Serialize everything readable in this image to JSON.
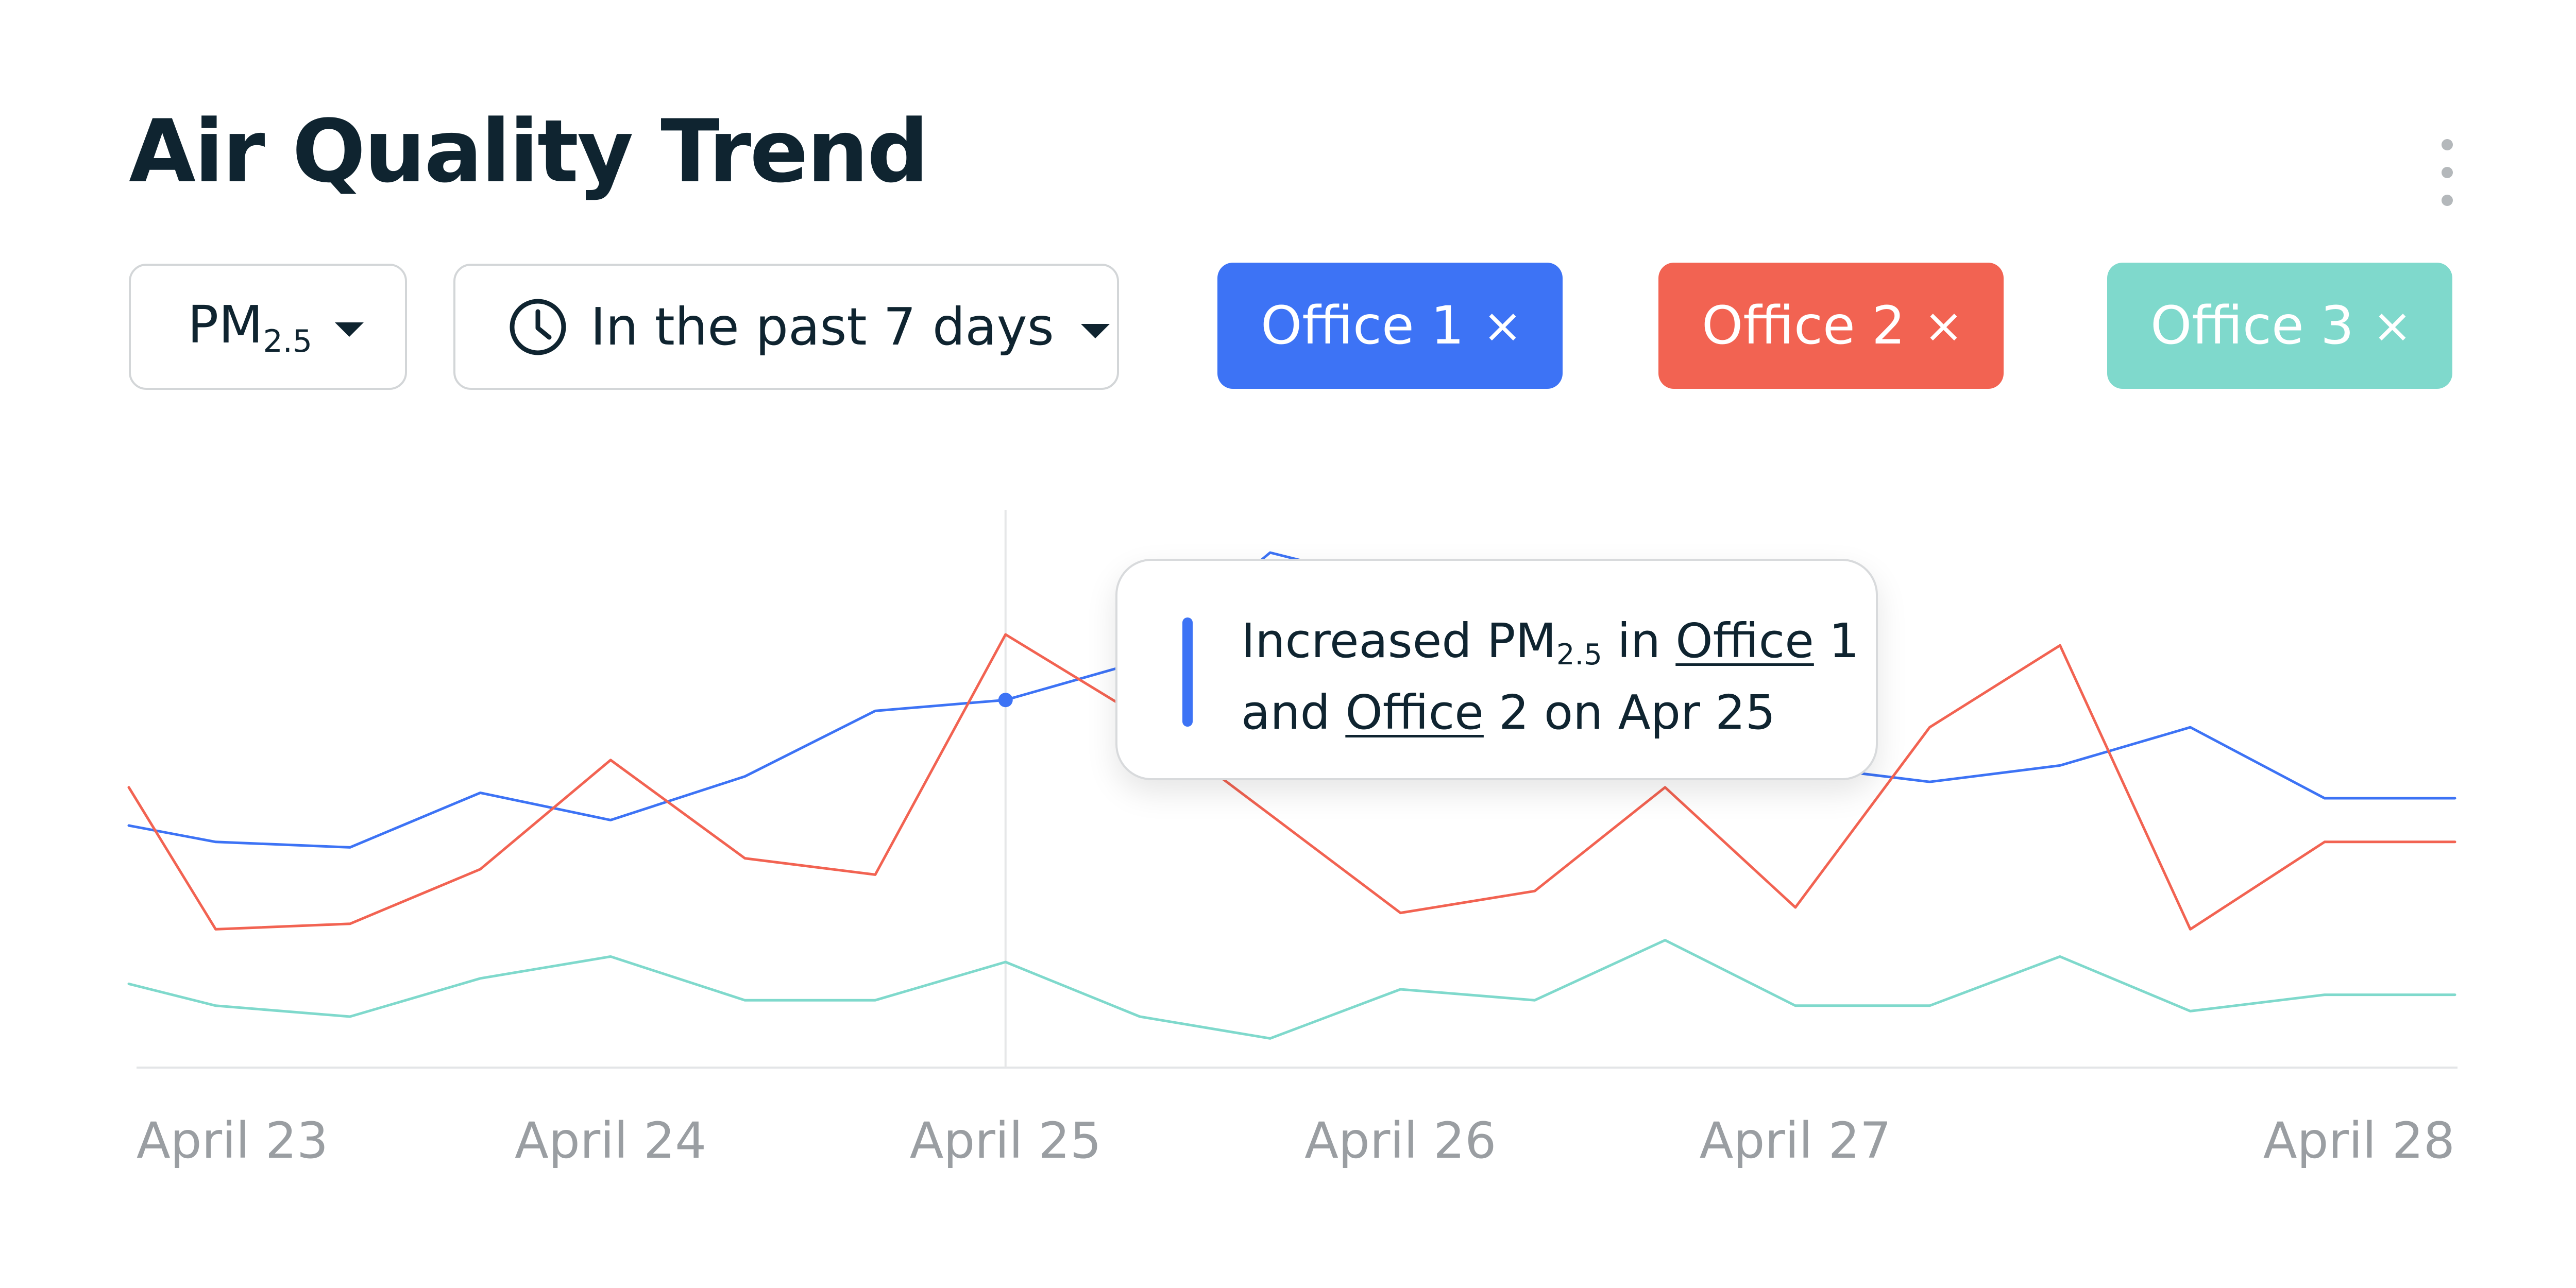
{
  "header": {
    "title": "Air Quality Trend"
  },
  "filters": {
    "metric": {
      "base": "PM",
      "subscript": "2.5"
    },
    "range": {
      "label": "In the past 7 days"
    }
  },
  "chips": [
    {
      "label": "Office 1",
      "close": "×",
      "color": "#3d73f5"
    },
    {
      "label": "Office 2",
      "close": "×",
      "color": "#f26352"
    },
    {
      "label": "Office 3",
      "close": "×",
      "color": "#7fd9cc"
    }
  ],
  "tooltip": {
    "part1": "Increased PM",
    "sub": "2.5",
    "part2": " in ",
    "office1": "Office",
    "part3": " 1",
    "part4": "and ",
    "office2": "Office",
    "part5": " 2 on Apr 25"
  },
  "icons": {
    "clock": "clock-icon",
    "caret": "chevron-down-icon",
    "more": "more-vertical-icon",
    "close": "close-icon"
  },
  "chart_data": {
    "type": "line",
    "x": [
      0,
      0.22,
      0.56,
      0.89,
      1.22,
      1.56,
      1.89,
      2.22,
      2.56,
      2.89,
      3.22,
      3.56,
      3.89,
      4.22,
      4.56,
      4.89,
      5.22,
      5.56,
      5.89
    ],
    "xticks": [
      {
        "value": 0.22,
        "label": "April 23"
      },
      {
        "value": 1.22,
        "label": "April 24"
      },
      {
        "value": 2.22,
        "label": "April 25"
      },
      {
        "value": 3.22,
        "label": "April 26"
      },
      {
        "value": 4.22,
        "label": "April 27"
      },
      {
        "value": 5.22,
        "label": "April 28"
      }
    ],
    "ylim": [
      0,
      100
    ],
    "grid": false,
    "highlight_x": 2.22,
    "series": [
      {
        "name": "Office 1",
        "color": "#3d73f5",
        "values": [
          45,
          42,
          41,
          51,
          46,
          54,
          66,
          68,
          75,
          95,
          89,
          86,
          76,
          56,
          53,
          56,
          63,
          50,
          50
        ]
      },
      {
        "name": "Office 2",
        "color": "#f26352",
        "values": [
          52,
          26,
          27,
          37,
          57,
          39,
          36,
          80,
          65,
          47,
          29,
          33,
          52,
          30,
          63,
          78,
          26,
          42,
          42
        ]
      },
      {
        "name": "Office 3",
        "color": "#7fd9cc",
        "values": [
          16,
          12,
          10,
          17,
          21,
          13,
          13,
          20,
          10,
          6,
          15,
          13,
          24,
          12,
          12,
          21,
          11,
          14,
          14
        ]
      }
    ]
  }
}
